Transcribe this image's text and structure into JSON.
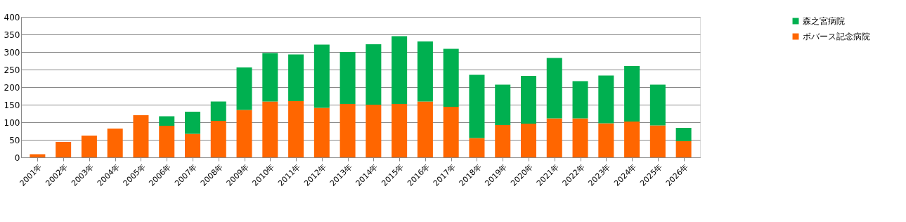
{
  "chart_data": {
    "type": "bar",
    "stacked": true,
    "categories": [
      "2001年",
      "2002年",
      "2003年",
      "2004年",
      "2005年",
      "2006年",
      "2007年",
      "2008年",
      "2009年",
      "2010年",
      "2011年",
      "2012年",
      "2013年",
      "2014年",
      "2015年",
      "2016年",
      "2017年",
      "2018年",
      "2019年",
      "2020年",
      "2021年",
      "2022年",
      "2023年",
      "2024年",
      "2025年",
      "2026年"
    ],
    "series": [
      {
        "name": "ボバース記念病院",
        "color": "#ff6600",
        "values": [
          9,
          44,
          62,
          82,
          120,
          90,
          67,
          104,
          135,
          159,
          160,
          141,
          152,
          150,
          152,
          159,
          144,
          55,
          92,
          96,
          111,
          111,
          97,
          102,
          91,
          46
        ]
      },
      {
        "name": "森之宮病院",
        "color": "#00b050",
        "values": [
          0,
          0,
          0,
          0,
          0,
          27,
          63,
          55,
          121,
          138,
          133,
          180,
          148,
          172,
          193,
          171,
          165,
          180,
          115,
          136,
          172,
          106,
          136,
          158,
          116,
          38
        ]
      }
    ],
    "ylim": [
      0,
      400
    ],
    "yticks": [
      0,
      50,
      100,
      150,
      200,
      250,
      300,
      350,
      400
    ],
    "grid": "y",
    "legend": "right"
  }
}
